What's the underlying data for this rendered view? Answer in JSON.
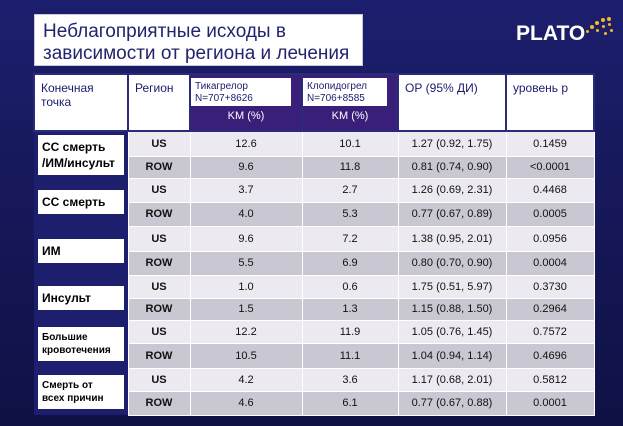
{
  "title": {
    "line1": "Неблагоприятные исходы в",
    "line2": "зависимости от региона и лечения"
  },
  "logo": {
    "text": "PLATO",
    "accent_color": "#f2b92b"
  },
  "table": {
    "headers": {
      "endpoint": "Конечная\nточка",
      "region": "Регион",
      "ticagrelor": "Тикагрелор\nN=707+8626",
      "clopidogrel": "Клопидогрел\nN=706+8585",
      "km": "KM (%)",
      "hr": "ОР (95% ДИ)",
      "p": "уровень p"
    },
    "groups": [
      {
        "endpoint": "СС смерть\n/ИМ/инсульт",
        "size": "big",
        "rows": [
          {
            "region": "US",
            "tica": "12.6",
            "clop": "10.1",
            "hr": "1.27 (0.92, 1.75)",
            "p": "0.1459"
          },
          {
            "region": "ROW",
            "tica": "9.6",
            "clop": "11.8",
            "hr": "0.81 (0.74, 0.90)",
            "p": "<0.0001"
          }
        ]
      },
      {
        "endpoint": "СС смерть",
        "size": "big",
        "rows": [
          {
            "region": "US",
            "tica": "3.7",
            "clop": "2.7",
            "hr": "1.26 (0.69, 2.31)",
            "p": "0.4468"
          },
          {
            "region": "ROW",
            "tica": "4.0",
            "clop": "5.3",
            "hr": "0.77 (0.67, 0.89)",
            "p": "0.0005"
          }
        ]
      },
      {
        "endpoint": "ИМ",
        "size": "big",
        "rows": [
          {
            "region": "US",
            "tica": "9.6",
            "clop": "7.2",
            "hr": "1.38 (0.95, 2.01)",
            "p": "0.0956"
          },
          {
            "region": "ROW",
            "tica": "5.5",
            "clop": "6.9",
            "hr": "0.80 (0.70, 0.90)",
            "p": "0.0004"
          }
        ]
      },
      {
        "endpoint": "Инсульт",
        "size": "big",
        "rows": [
          {
            "region": "US",
            "tica": "1.0",
            "clop": "0.6",
            "hr": "1.75 (0.51, 5.97)",
            "p": "0.3730"
          },
          {
            "region": "ROW",
            "tica": "1.5",
            "clop": "1.3",
            "hr": "1.15 (0.88, 1.50)",
            "p": "0.2964"
          }
        ]
      },
      {
        "endpoint": "Большие\nкровотечения",
        "size": "small",
        "rows": [
          {
            "region": "US",
            "tica": "12.2",
            "clop": "11.9",
            "hr": "1.05 (0.76, 1.45)",
            "p": "0.7572"
          },
          {
            "region": "ROW",
            "tica": "10.5",
            "clop": "11.1",
            "hr": "1.04 (0.94, 1.14)",
            "p": "0.4696"
          }
        ]
      },
      {
        "endpoint": "Смерть от\nвсех причин",
        "size": "small",
        "rows": [
          {
            "region": "US",
            "tica": "4.2",
            "clop": "3.6",
            "hr": "1.17 (0.68, 2.01)",
            "p": "0.5812"
          },
          {
            "region": "ROW",
            "tica": "4.6",
            "clop": "6.1",
            "hr": "0.77 (0.67, 0.88)",
            "p": "0.0001"
          }
        ]
      }
    ]
  }
}
